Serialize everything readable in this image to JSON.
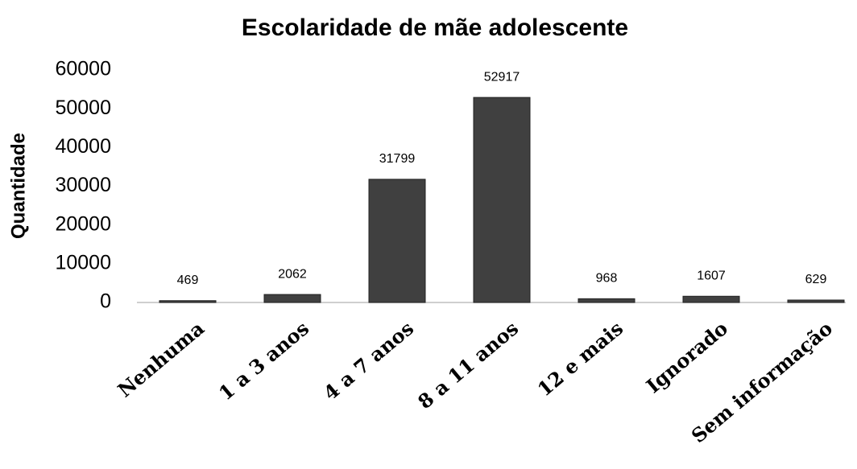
{
  "chart_data": {
    "type": "bar",
    "title": "Escolaridade de mãe adolescente",
    "y_label": "Quantidade",
    "categories": [
      "Nenhuma",
      "1 a 3 anos",
      "4 a 7 anos",
      "8 a 11 anos",
      "12 e mais",
      "Ignorado",
      "Sem informação"
    ],
    "values": [
      469,
      2062,
      31799,
      52917,
      968,
      1607,
      629
    ],
    "color": "#404040",
    "ylim": [
      0,
      60000
    ],
    "yticks": [
      0,
      10000,
      20000,
      30000,
      40000,
      50000,
      60000
    ],
    "grid": false
  }
}
